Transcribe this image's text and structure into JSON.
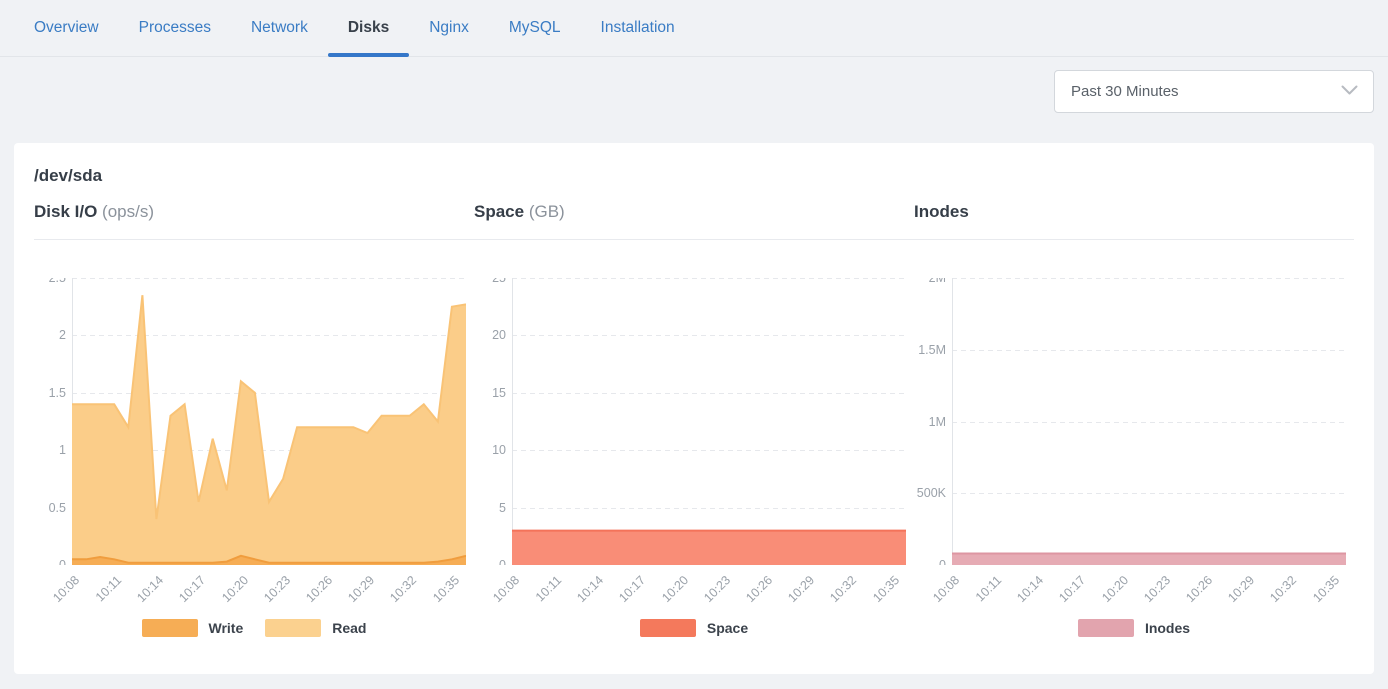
{
  "tabs": {
    "items": [
      {
        "label": "Overview",
        "active": false
      },
      {
        "label": "Processes",
        "active": false
      },
      {
        "label": "Network",
        "active": false
      },
      {
        "label": "Disks",
        "active": true
      },
      {
        "label": "Nginx",
        "active": false
      },
      {
        "label": "MySQL",
        "active": false
      },
      {
        "label": "Installation",
        "active": false
      }
    ]
  },
  "toolbar": {
    "time_range": "Past 30 Minutes"
  },
  "main": {
    "section_title": "/dev/sda"
  },
  "colors": {
    "tab_blue": "#3a7cc4",
    "active_underline": "#3577c9",
    "write": "#f6ad55",
    "read": "#fbd18f",
    "space": "#f4795c",
    "inodes": "#e2a4ae"
  },
  "chart_data": [
    {
      "type": "area",
      "title": "Disk I/O",
      "unit": "(ops/s)",
      "grid": "dashed-horizontal",
      "legend_position": "bottom",
      "ylim": [
        0,
        2.5
      ],
      "yticks": [
        "2.5",
        "2",
        "1.5",
        "1",
        "0.5",
        "0"
      ],
      "x": [
        "10:08",
        "10:09",
        "10:10",
        "10:11",
        "10:12",
        "10:13",
        "10:14",
        "10:15",
        "10:16",
        "10:17",
        "10:18",
        "10:19",
        "10:20",
        "10:21",
        "10:22",
        "10:23",
        "10:24",
        "10:25",
        "10:26",
        "10:27",
        "10:28",
        "10:29",
        "10:30",
        "10:31",
        "10:32",
        "10:33",
        "10:34",
        "10:35",
        "10:36"
      ],
      "tick_every": 3,
      "series": [
        {
          "name": "Write",
          "color": "#f6ad55",
          "fill": "#f6ad55",
          "line": "#f09d3e",
          "values": [
            0.05,
            0.05,
            0.07,
            0.05,
            0.02,
            0.02,
            0.02,
            0.02,
            0.02,
            0.02,
            0.02,
            0.03,
            0.08,
            0.05,
            0.02,
            0.02,
            0.02,
            0.02,
            0.02,
            0.02,
            0.02,
            0.02,
            0.02,
            0.02,
            0.02,
            0.02,
            0.03,
            0.05,
            0.08
          ]
        },
        {
          "name": "Read",
          "color": "#fbd18f",
          "fill": "#fbcd89",
          "line": "#f9c376",
          "values": [
            1.4,
            1.4,
            1.4,
            1.4,
            1.2,
            2.35,
            0.4,
            1.3,
            1.4,
            0.55,
            1.1,
            0.65,
            1.6,
            1.5,
            0.55,
            0.75,
            1.2,
            1.2,
            1.2,
            1.2,
            1.2,
            1.15,
            1.3,
            1.3,
            1.3,
            1.4,
            1.25,
            2.25,
            2.27
          ]
        }
      ]
    },
    {
      "type": "area",
      "title": "Space",
      "unit": "(GB)",
      "grid": "dashed-horizontal",
      "legend_position": "bottom",
      "ylim": [
        0,
        25
      ],
      "yticks": [
        "25",
        "20",
        "15",
        "10",
        "5",
        "0"
      ],
      "x": [
        "10:08",
        "10:09",
        "10:10",
        "10:11",
        "10:12",
        "10:13",
        "10:14",
        "10:15",
        "10:16",
        "10:17",
        "10:18",
        "10:19",
        "10:20",
        "10:21",
        "10:22",
        "10:23",
        "10:24",
        "10:25",
        "10:26",
        "10:27",
        "10:28",
        "10:29",
        "10:30",
        "10:31",
        "10:32",
        "10:33",
        "10:34",
        "10:35",
        "10:36"
      ],
      "tick_every": 3,
      "series": [
        {
          "name": "Space",
          "color": "#f4795c",
          "fill": "#f98d77",
          "line": "#f4735a",
          "values": [
            3,
            3,
            3,
            3,
            3,
            3,
            3,
            3,
            3,
            3,
            3,
            3,
            3,
            3,
            3,
            3,
            3,
            3,
            3,
            3,
            3,
            3,
            3,
            3,
            3,
            3,
            3,
            3,
            3
          ]
        }
      ]
    },
    {
      "type": "area",
      "title": "Inodes",
      "unit": "",
      "grid": "dashed-horizontal",
      "legend_position": "bottom",
      "ylim": [
        0,
        2000000
      ],
      "yticks": [
        "2M",
        "1.5M",
        "1M",
        "500K",
        "0"
      ],
      "x": [
        "10:08",
        "10:09",
        "10:10",
        "10:11",
        "10:12",
        "10:13",
        "10:14",
        "10:15",
        "10:16",
        "10:17",
        "10:18",
        "10:19",
        "10:20",
        "10:21",
        "10:22",
        "10:23",
        "10:24",
        "10:25",
        "10:26",
        "10:27",
        "10:28",
        "10:29",
        "10:30",
        "10:31",
        "10:32",
        "10:33",
        "10:34",
        "10:35",
        "10:36"
      ],
      "tick_every": 3,
      "series": [
        {
          "name": "Inodes",
          "color": "#e2a4ae",
          "fill": "#e6abb4",
          "line": "#dd96a2",
          "values": [
            80000,
            80000,
            80000,
            80000,
            80000,
            80000,
            80000,
            80000,
            80000,
            80000,
            80000,
            80000,
            80000,
            80000,
            80000,
            80000,
            80000,
            80000,
            80000,
            80000,
            80000,
            80000,
            80000,
            80000,
            80000,
            80000,
            80000,
            80000,
            80000
          ]
        }
      ]
    }
  ]
}
